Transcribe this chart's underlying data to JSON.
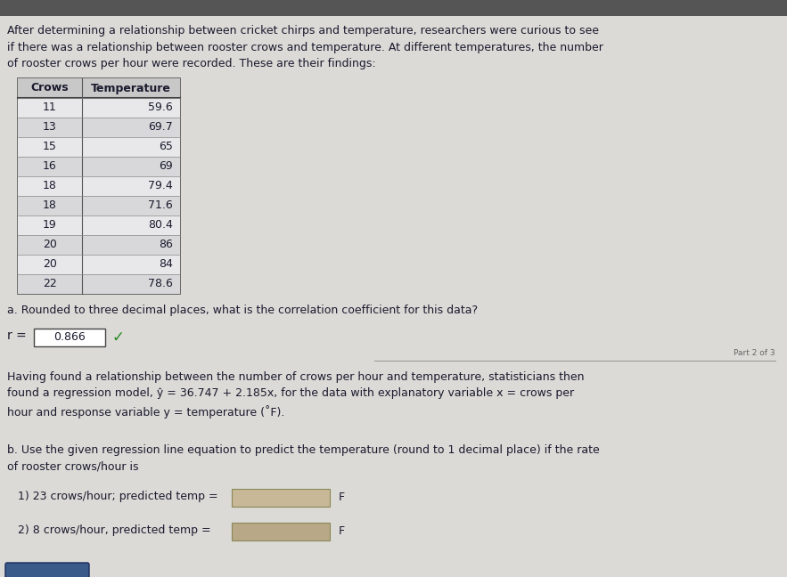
{
  "title_text": "After determining a relationship between cricket chirps and temperature, researchers were curious to see\nif there was a relationship between rooster crows and temperature. At different temperatures, the number\nof rooster crows per hour were recorded. These are their findings:",
  "table_headers": [
    "Crows",
    "Temperature"
  ],
  "table_data": [
    [
      11,
      "59.6"
    ],
    [
      13,
      "69.7"
    ],
    [
      15,
      "65"
    ],
    [
      16,
      "69"
    ],
    [
      18,
      "79.4"
    ],
    [
      18,
      "71.6"
    ],
    [
      19,
      "80.4"
    ],
    [
      20,
      "86"
    ],
    [
      20,
      "84"
    ],
    [
      22,
      "78.6"
    ]
  ],
  "question_a": "a. Rounded to three decimal places, what is the correlation coefficient for this data?",
  "r_label": "r =",
  "r_value": "0.866",
  "page_label": "Part 2 of 3",
  "paragraph2": "Having found a relationship between the number of crows per hour and temperature, statisticians then\nfound a regression model, ŷ = 36.747 + 2.185x, for the data with explanatory variable x = crows per\nhour and response variable y = temperature (˚F).",
  "question_b": "b. Use the given regression line equation to predict the temperature (round to 1 decimal place) if the rate\nof rooster crows/hour is",
  "sub1": "1) 23 crows/hour; predicted temp =",
  "sub1_F": "F",
  "sub2": "2) 8 crows/hour, predicted temp =",
  "sub2_F": "F",
  "bg_color": "#c0bfbd",
  "page_bg": "#dcdad6",
  "table_bg_white": "#e8e8e8",
  "table_bg_alt": "#d8d8d8",
  "header_bg": "#c8c8c8",
  "input_box_color": "#c8b898",
  "input_box_color2": "#b8a888",
  "text_color": "#111111",
  "text_color_dark": "#1a1a2e",
  "font_size_body": 9.0,
  "font_size_table": 9.0,
  "checkmark_color": "#228822",
  "btn_color": "#3a5a8a"
}
